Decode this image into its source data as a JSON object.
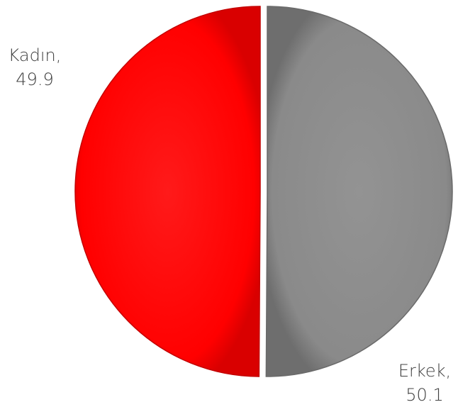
{
  "chart_data": {
    "type": "pie",
    "slices": [
      {
        "name": "Kadın",
        "value": 49.9,
        "color": "#ff0000",
        "label_name": "Kadın,",
        "label_value": "49.9"
      },
      {
        "name": "Erkek",
        "value": 50.1,
        "color": "#8c8c8c",
        "label_name": "Erkek,",
        "label_value": "50.1"
      }
    ],
    "exploded": true,
    "legend": "none",
    "data_labels": "outside"
  }
}
